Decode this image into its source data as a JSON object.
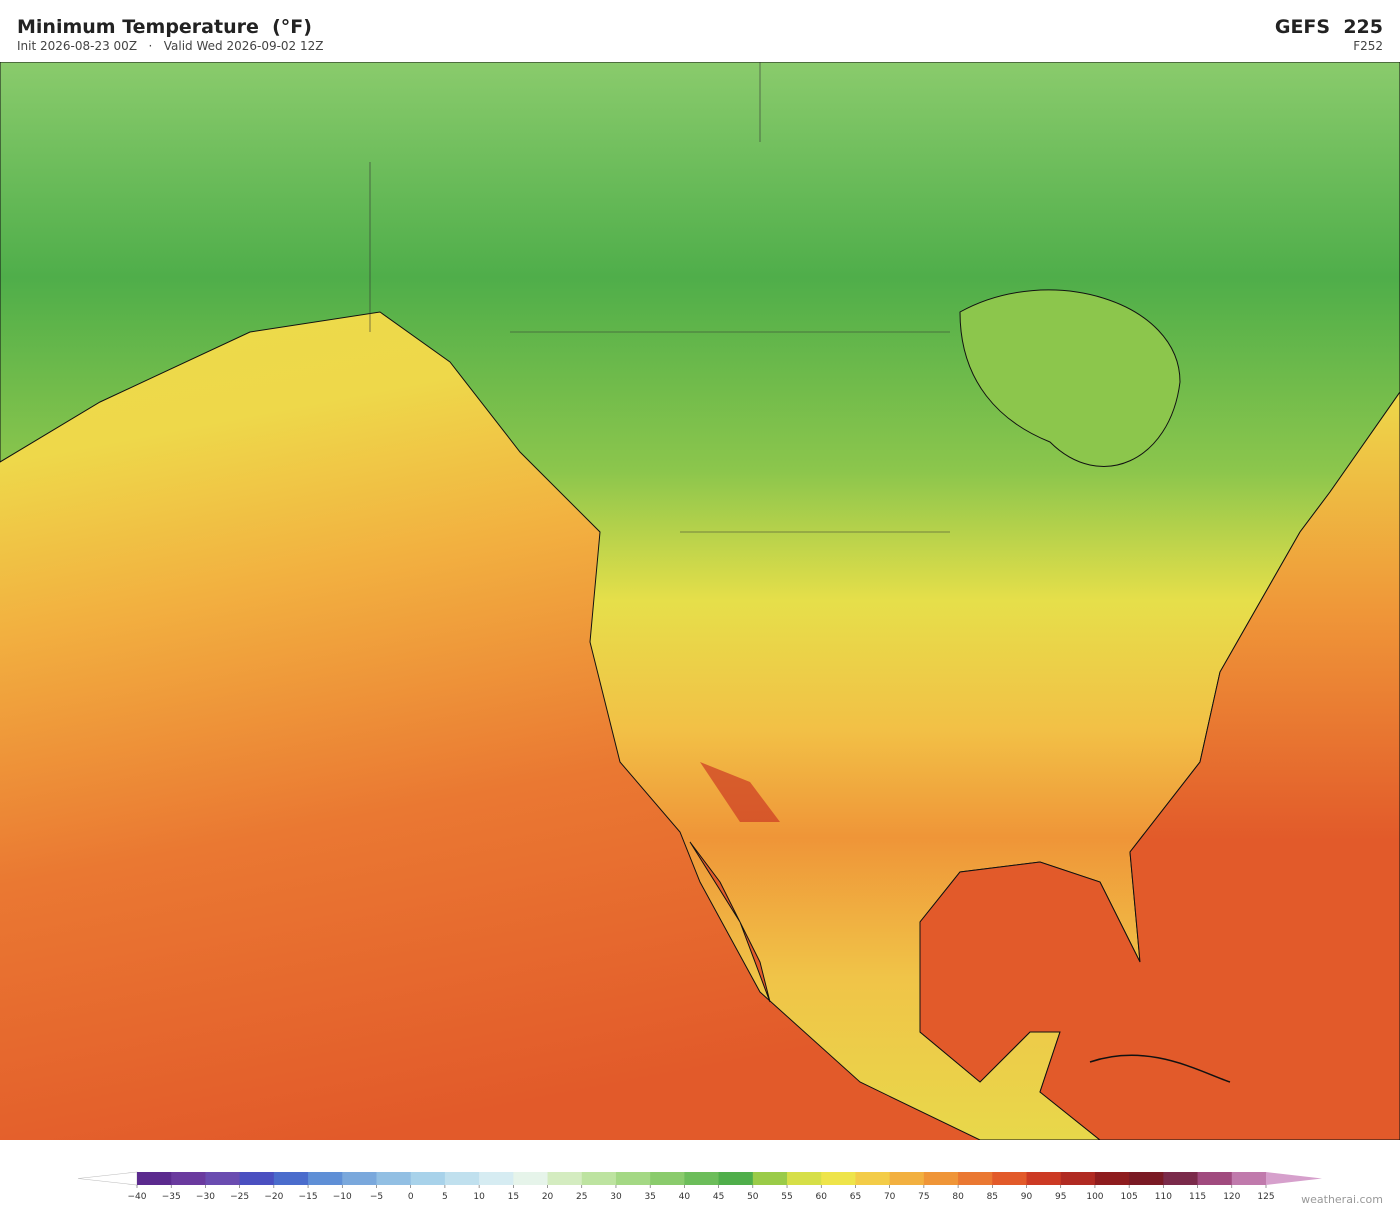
{
  "header": {
    "title": "Minimum Temperature  (°F)",
    "subtitle": "Init 2026-08-23 00Z   ·   Valid Wed 2026-09-02 12Z",
    "model": "GEFS  225",
    "forecast_hour": "F252"
  },
  "colorbar": {
    "ticks": [
      {
        "value": -40,
        "label": "−40"
      },
      {
        "value": -35,
        "label": "−35"
      },
      {
        "value": -30,
        "label": "−30"
      },
      {
        "value": -25,
        "label": "−25"
      },
      {
        "value": -20,
        "label": "−20"
      },
      {
        "value": -15,
        "label": "−15"
      },
      {
        "value": -10,
        "label": "−10"
      },
      {
        "value": -5,
        "label": "−5"
      },
      0,
      5,
      10,
      15,
      20,
      25,
      30,
      35,
      40,
      45,
      50,
      55,
      60,
      65,
      70,
      75,
      80,
      85,
      90,
      95,
      100,
      105,
      110,
      115,
      120,
      125
    ],
    "colors": [
      "#5b2a8e",
      "#6a3a9e",
      "#6a4cb0",
      "#4a4fc0",
      "#4a6ccc",
      "#5f8fd6",
      "#7aa8dc",
      "#92bfe3",
      "#a8d2ea",
      "#c0e0ee",
      "#d6ecf2",
      "#e6f4ea",
      "#d4ecc0",
      "#bde3a0",
      "#a4d884",
      "#8acb6c",
      "#6cbd5a",
      "#4fae4a",
      "#9acb48",
      "#d6df48",
      "#eee44a",
      "#f3cc48",
      "#f2b040",
      "#ef9538",
      "#ea7832",
      "#e25a2a",
      "#cc3a24",
      "#b02a22",
      "#8e1c1e",
      "#7a1a24",
      "#7a2a4a",
      "#a04a7e",
      "#c07aac",
      "#d6a0cc"
    ]
  },
  "footer": {
    "watermark": "weatherai.com"
  }
}
